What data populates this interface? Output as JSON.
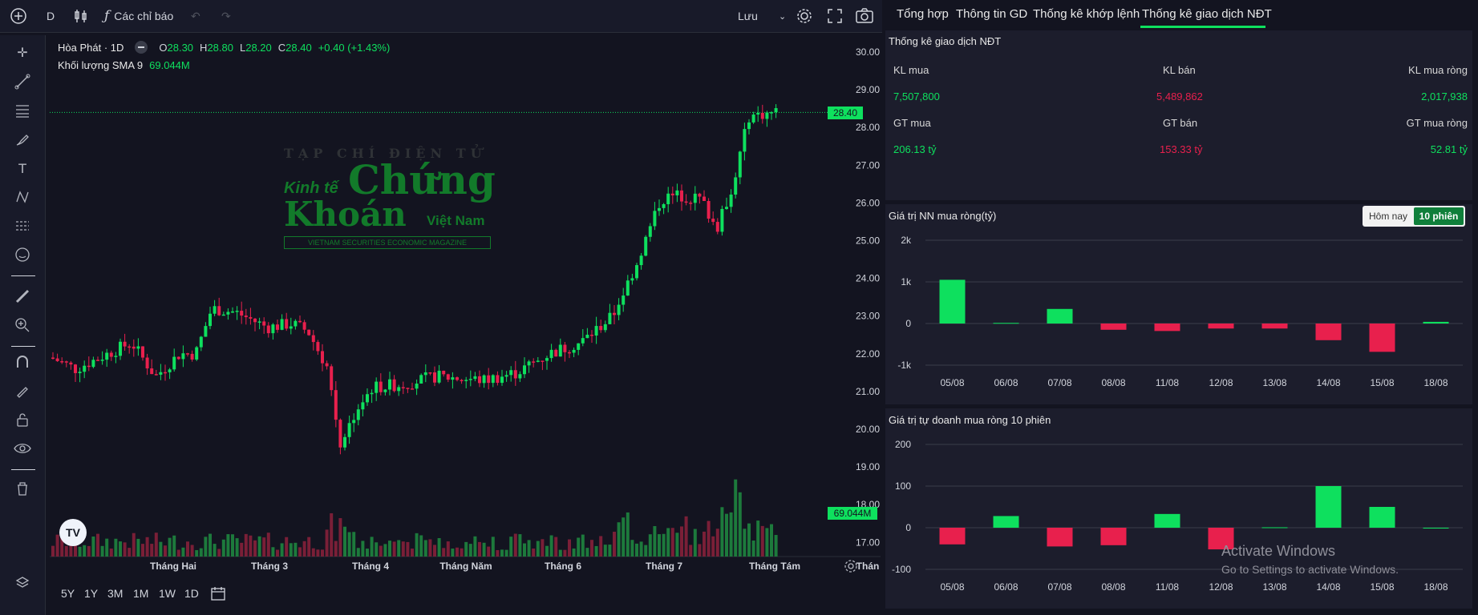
{
  "toolbar": {
    "symbol_interval": "D",
    "indicators_label": "Các chỉ báo",
    "save_label": "Lưu"
  },
  "legend": {
    "symbol": "Hòa Phát · 1D",
    "o_label": "O",
    "o_value": "28.30",
    "h_label": "H",
    "h_value": "28.80",
    "l_label": "L",
    "l_value": "28.20",
    "c_label": "C",
    "c_value": "28.40",
    "change": "+0.40 (+1.43%)",
    "volume_label": "Khối lượng SMA 9",
    "volume_value": "69.044M"
  },
  "watermark": {
    "line1": "TẠP CHÍ ĐIỆN TỬ",
    "line2a": "Kinh tế",
    "line2b": "Chứng",
    "line3a": "Khoán",
    "line3b": "Việt Nam",
    "line4": "VIETNAM SECURITIES ECONOMIC MAGAZINE"
  },
  "price_axis": [
    "30.00",
    "29.00",
    "28.00",
    "27.00",
    "26.00",
    "25.00",
    "24.00",
    "23.00",
    "22.00",
    "21.00",
    "20.00",
    "19.00",
    "18.00",
    "17.00"
  ],
  "last_price_tag": "28.40",
  "volume_tag": "69.044M",
  "time_axis": [
    "Tháng Hai",
    "Tháng 3",
    "Tháng 4",
    "Tháng Năm",
    "Tháng 6",
    "Tháng 7",
    "Tháng Tám",
    "Thán"
  ],
  "timeframes": [
    "5Y",
    "1Y",
    "3M",
    "1M",
    "1W",
    "1D"
  ],
  "tabs": [
    "Tổng hợp",
    "Thông tin GD",
    "Thống kê khớp lệnh",
    "Thống kê giao dịch NĐT"
  ],
  "stats": {
    "title": "Thống kê giao dịch NĐT",
    "kl_mua_label": "KL mua",
    "kl_ban_label": "KL bán",
    "kl_rong_label": "KL mua ròng",
    "kl_mua": "7,507,800",
    "kl_ban": "5,489,862",
    "kl_rong": "2,017,938",
    "gt_mua_label": "GT mua",
    "gt_ban_label": "GT bán",
    "gt_rong_label": "GT mua ròng",
    "gt_mua": "206.13 tỷ",
    "gt_ban": "153.33 tỷ",
    "gt_rong": "52.81 tỷ"
  },
  "foreign": {
    "title": "Giá trị NN mua ròng(tỷ)",
    "btn_today": "Hôm nay",
    "btn_10": "10 phiên"
  },
  "prop": {
    "title": "Giá trị tự doanh mua ròng 10 phiên"
  },
  "windows": {
    "line1": "Activate Windows",
    "line2": "Go to Settings to activate Windows."
  },
  "colors": {
    "up": "#0ee05e",
    "down": "#e8204d",
    "bg": "#131420",
    "panel": "#1c1d2c"
  },
  "chart_data": [
    {
      "type": "bar",
      "title": "Giá trị NN mua ròng(tỷ)",
      "categories": [
        "05/08",
        "06/08",
        "07/08",
        "08/08",
        "11/08",
        "12/08",
        "13/08",
        "14/08",
        "15/08",
        "18/08"
      ],
      "values": [
        1050,
        15,
        350,
        -150,
        -180,
        -120,
        -120,
        -400,
        -680,
        40
      ],
      "ylim": [
        -1000,
        2000
      ],
      "yticks": [
        "2k",
        "1k",
        "0",
        "-1k"
      ],
      "grid": true
    },
    {
      "type": "bar",
      "title": "Giá trị tự doanh mua ròng 10 phiên",
      "categories": [
        "05/08",
        "06/08",
        "07/08",
        "08/08",
        "11/08",
        "12/08",
        "13/08",
        "14/08",
        "15/08",
        "18/08"
      ],
      "values": [
        -40,
        28,
        -45,
        -42,
        33,
        -52,
        1,
        100,
        50,
        0
      ],
      "ylim": [
        -100,
        200
      ],
      "yticks": [
        "200",
        "100",
        "0",
        "-100"
      ],
      "grid": true
    }
  ]
}
